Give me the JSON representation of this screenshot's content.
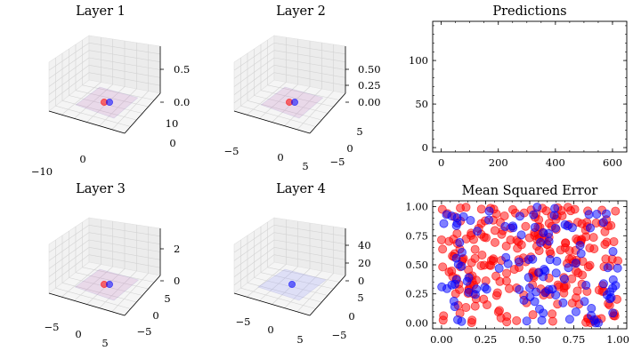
{
  "chart_data": [
    {
      "type": "3d-surface",
      "title": "Layer 1",
      "x_ticks": [
        "−10",
        "0"
      ],
      "y_ticks": [
        "0",
        "10"
      ],
      "z_ticks": [
        "0.0",
        "0.5"
      ],
      "points": [
        {
          "color": "red"
        },
        {
          "color": "blue"
        }
      ]
    },
    {
      "type": "3d-surface",
      "title": "Layer 2",
      "x_ticks": [
        "−5",
        "0",
        "5"
      ],
      "y_ticks": [
        "−5",
        "0",
        "5"
      ],
      "z_ticks": [
        "0.00",
        "0.25",
        "0.50"
      ],
      "points": [
        {
          "color": "red"
        },
        {
          "color": "blue"
        }
      ]
    },
    {
      "type": "line",
      "title": "Predictions",
      "xlim": [
        -30,
        650
      ],
      "ylim": [
        -5,
        145
      ],
      "x_ticks": [
        0,
        200,
        400,
        600
      ],
      "y_ticks": [
        0,
        50,
        100
      ],
      "series": []
    },
    {
      "type": "3d-surface",
      "title": "Layer 3",
      "x_ticks": [
        "−5",
        "0",
        "5"
      ],
      "y_ticks": [
        "−5",
        "0",
        "5"
      ],
      "z_ticks": [
        "0",
        "2"
      ],
      "points": [
        {
          "color": "red"
        },
        {
          "color": "blue"
        }
      ]
    },
    {
      "type": "3d-surface",
      "title": "Layer 4",
      "x_ticks": [
        "−5",
        "0",
        "5"
      ],
      "y_ticks": [
        "−5",
        "0",
        "5"
      ],
      "z_ticks": [
        "0",
        "20",
        "40"
      ],
      "points": [
        {
          "color": "blue"
        }
      ]
    },
    {
      "type": "scatter",
      "title": "Mean Squared Error",
      "xlim": [
        -0.05,
        1.05
      ],
      "ylim": [
        -0.05,
        1.05
      ],
      "x_ticks": [
        "0.00",
        "0.25",
        "0.50",
        "0.75",
        "1.00"
      ],
      "y_ticks": [
        "0.00",
        "0.25",
        "0.50",
        "0.75",
        "1.00"
      ],
      "series": [
        {
          "color": "#ff0000",
          "n": 250,
          "seed": 7
        },
        {
          "color": "#0000ff",
          "n": 110,
          "seed": 19
        }
      ]
    }
  ],
  "colors": {
    "red": "#ff0000",
    "blue": "#0000ff",
    "pane": "#f2f2f2",
    "grid": "#d3d3d3"
  }
}
